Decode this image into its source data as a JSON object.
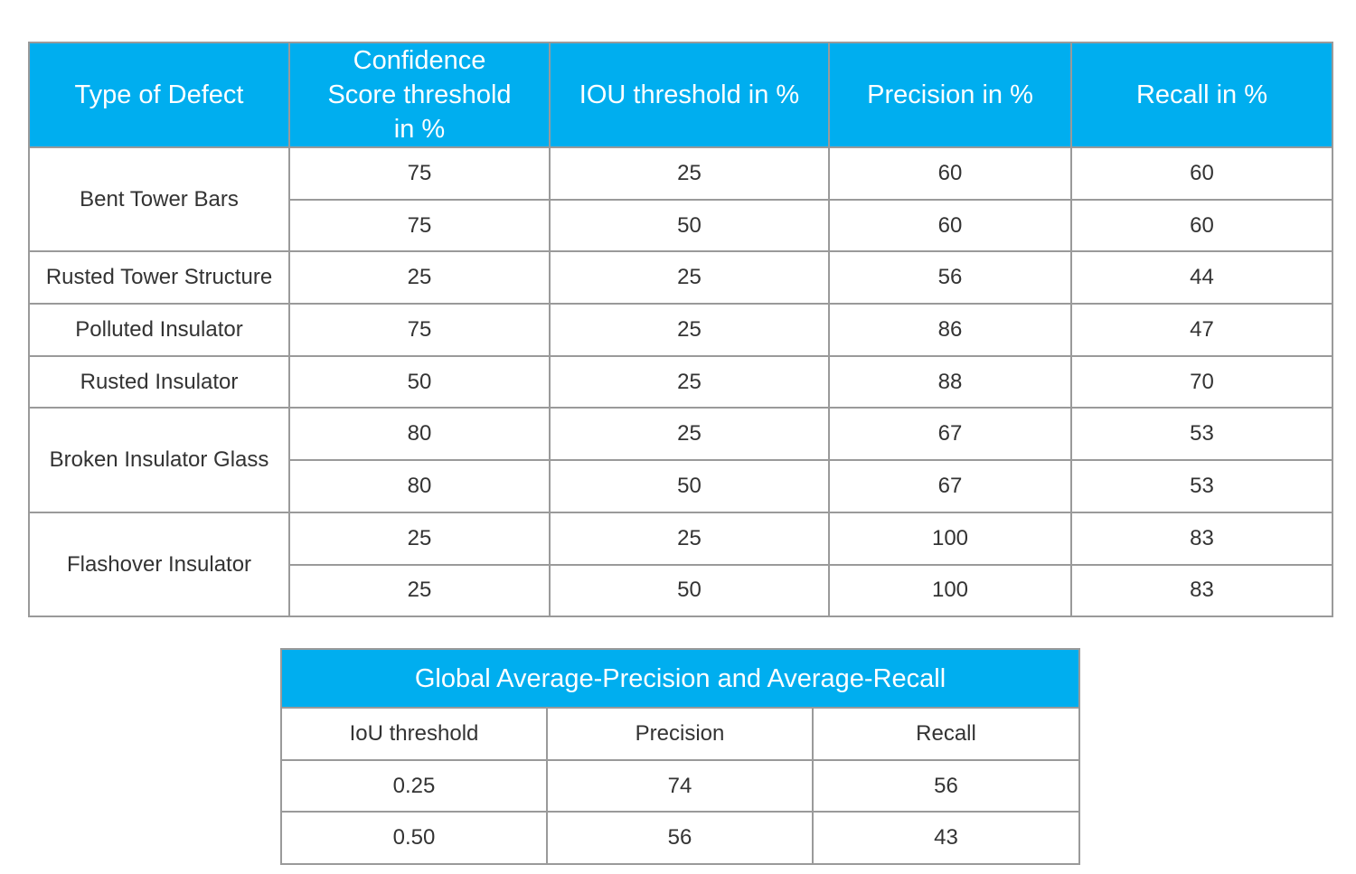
{
  "defect_table": {
    "headers": [
      "Type of Defect",
      "Confidence Score threshold in %",
      "IOU threshold in %",
      "Precision in %",
      "Recall in %"
    ],
    "groups": [
      {
        "defect": "Bent Tower Bars",
        "rows": [
          [
            "75",
            "25",
            "60",
            "60"
          ],
          [
            "75",
            "50",
            "60",
            "60"
          ]
        ]
      },
      {
        "defect": "Rusted Tower Structure",
        "rows": [
          [
            "25",
            "25",
            "56",
            "44"
          ]
        ]
      },
      {
        "defect": "Polluted Insulator",
        "rows": [
          [
            "75",
            "25",
            "86",
            "47"
          ]
        ]
      },
      {
        "defect": "Rusted Insulator",
        "rows": [
          [
            "50",
            "25",
            "88",
            "70"
          ]
        ]
      },
      {
        "defect": "Broken Insulator Glass",
        "rows": [
          [
            "80",
            "25",
            "67",
            "53"
          ],
          [
            "80",
            "50",
            "67",
            "53"
          ]
        ]
      },
      {
        "defect": "Flashover Insulator",
        "rows": [
          [
            "25",
            "25",
            "100",
            "83"
          ],
          [
            "25",
            "50",
            "100",
            "83"
          ]
        ]
      }
    ]
  },
  "average_table": {
    "title": "Global Average-Precision and Average-Recall",
    "headers": [
      "IoU threshold",
      "Precision",
      "Recall"
    ],
    "rows": [
      [
        "0.25",
        "74",
        "56"
      ],
      [
        "0.50",
        "56",
        "43"
      ]
    ]
  },
  "colors": {
    "header_background": "#00aeef",
    "header_text": "#ffffff",
    "border": "#9a9a9a",
    "body_text": "#333333"
  }
}
